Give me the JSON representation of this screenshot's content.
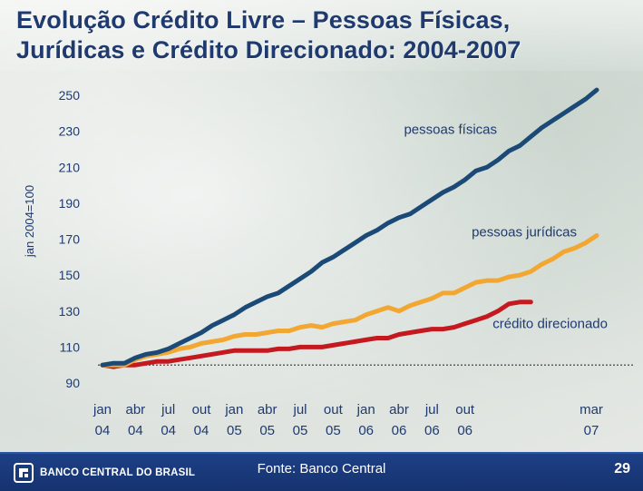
{
  "title": {
    "line1": "Evolução Crédito Livre – Pessoas Físicas,",
    "line2": "Jurídicas e Crédito Direcionado: 2004-2007"
  },
  "footer": {
    "logo_text": "BANCO CENTRAL DO BRASIL",
    "source": "Fonte: Banco Central",
    "page_number": "29"
  },
  "colors": {
    "pessoas_fisicas": "#1b4a77",
    "pessoas_juridicas": "#f2a733",
    "credito_direcionado": "#c41a1f",
    "footer": "#1d3f86"
  },
  "chart_data": {
    "type": "line",
    "ylabel": "jan 2004=100",
    "ylim": [
      90,
      250
    ],
    "yticks": [
      90,
      110,
      130,
      150,
      170,
      190,
      210,
      230,
      250
    ],
    "reference_line": 100,
    "x_tick_labels": [
      {
        "month": "jan",
        "year": "04",
        "index": 0
      },
      {
        "month": "abr",
        "year": "04",
        "index": 3
      },
      {
        "month": "jul",
        "year": "04",
        "index": 6
      },
      {
        "month": "out",
        "year": "04",
        "index": 9
      },
      {
        "month": "jan",
        "year": "05",
        "index": 12
      },
      {
        "month": "abr",
        "year": "05",
        "index": 15
      },
      {
        "month": "jul",
        "year": "05",
        "index": 18
      },
      {
        "month": "out",
        "year": "05",
        "index": 21
      },
      {
        "month": "jan",
        "year": "06",
        "index": 24
      },
      {
        "month": "abr",
        "year": "06",
        "index": 27
      },
      {
        "month": "jul",
        "year": "06",
        "index": 30
      },
      {
        "month": "out",
        "year": "06",
        "index": 33
      },
      {
        "month": "mar",
        "year": "07",
        "index": 38
      }
    ],
    "series": [
      {
        "name": "pessoas físicas",
        "values": [
          100,
          101,
          101,
          104,
          106,
          107,
          109,
          112,
          115,
          118,
          122,
          125,
          128,
          132,
          135,
          138,
          140,
          144,
          148,
          152,
          157,
          160,
          164,
          168,
          172,
          175,
          179,
          182,
          184,
          188,
          192,
          196,
          199,
          203,
          208,
          210,
          214,
          219,
          222,
          227,
          232,
          236,
          240,
          244,
          248,
          253
        ]
      },
      {
        "name": "pessoas jurídicas",
        "values": [
          100,
          100,
          100,
          103,
          105,
          106,
          107,
          109,
          110,
          112,
          113,
          114,
          116,
          117,
          117,
          118,
          119,
          119,
          121,
          122,
          121,
          123,
          124,
          125,
          128,
          130,
          132,
          130,
          133,
          135,
          137,
          140,
          140,
          143,
          146,
          147,
          147,
          149,
          150,
          152,
          156,
          159,
          163,
          165,
          168,
          172
        ]
      },
      {
        "name": "crédito direcionado",
        "values": [
          100,
          99,
          100,
          100,
          101,
          102,
          102,
          103,
          104,
          105,
          106,
          107,
          108,
          108,
          108,
          108,
          109,
          109,
          110,
          110,
          110,
          111,
          112,
          113,
          114,
          115,
          115,
          117,
          118,
          119,
          120,
          120,
          121,
          123,
          125,
          127,
          130,
          134,
          135,
          135
        ]
      }
    ],
    "annotations": [
      {
        "text": "pessoas físicas",
        "series": 0
      },
      {
        "text": "pessoas jurídicas",
        "series": 1
      },
      {
        "text": "crédito direcionado",
        "series": 2
      }
    ]
  }
}
